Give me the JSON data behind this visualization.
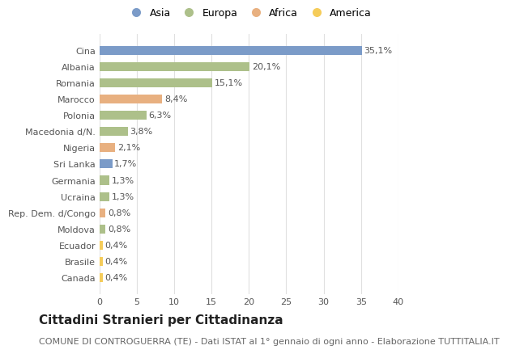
{
  "categories": [
    "Cina",
    "Albania",
    "Romania",
    "Marocco",
    "Polonia",
    "Macedonia d/N.",
    "Nigeria",
    "Sri Lanka",
    "Germania",
    "Ucraina",
    "Rep. Dem. d/Congo",
    "Moldova",
    "Ecuador",
    "Brasile",
    "Canada"
  ],
  "values": [
    35.1,
    20.1,
    15.1,
    8.4,
    6.3,
    3.8,
    2.1,
    1.7,
    1.3,
    1.3,
    0.8,
    0.8,
    0.4,
    0.4,
    0.4
  ],
  "labels": [
    "35,1%",
    "20,1%",
    "15,1%",
    "8,4%",
    "6,3%",
    "3,8%",
    "2,1%",
    "1,7%",
    "1,3%",
    "1,3%",
    "0,8%",
    "0,8%",
    "0,4%",
    "0,4%",
    "0,4%"
  ],
  "colors": [
    "#7b9bc8",
    "#adc08a",
    "#adc08a",
    "#e8b080",
    "#adc08a",
    "#adc08a",
    "#e8b080",
    "#7b9bc8",
    "#adc08a",
    "#adc08a",
    "#e8b080",
    "#adc08a",
    "#f5cc5a",
    "#f5cc5a",
    "#f5cc5a"
  ],
  "legend_labels": [
    "Asia",
    "Europa",
    "Africa",
    "America"
  ],
  "legend_colors": [
    "#7b9bc8",
    "#adc08a",
    "#e8b080",
    "#f5cc5a"
  ],
  "title": "Cittadini Stranieri per Cittadinanza",
  "subtitle": "COMUNE DI CONTROGUERRA (TE) - Dati ISTAT al 1° gennaio di ogni anno - Elaborazione TUTTITALIA.IT",
  "xlim": [
    0,
    40
  ],
  "xticks": [
    0,
    5,
    10,
    15,
    20,
    25,
    30,
    35,
    40
  ],
  "background_color": "#ffffff",
  "grid_color": "#e0e0e0",
  "bar_height": 0.55,
  "title_fontsize": 11,
  "subtitle_fontsize": 8,
  "label_fontsize": 8,
  "tick_fontsize": 8,
  "legend_fontsize": 9
}
